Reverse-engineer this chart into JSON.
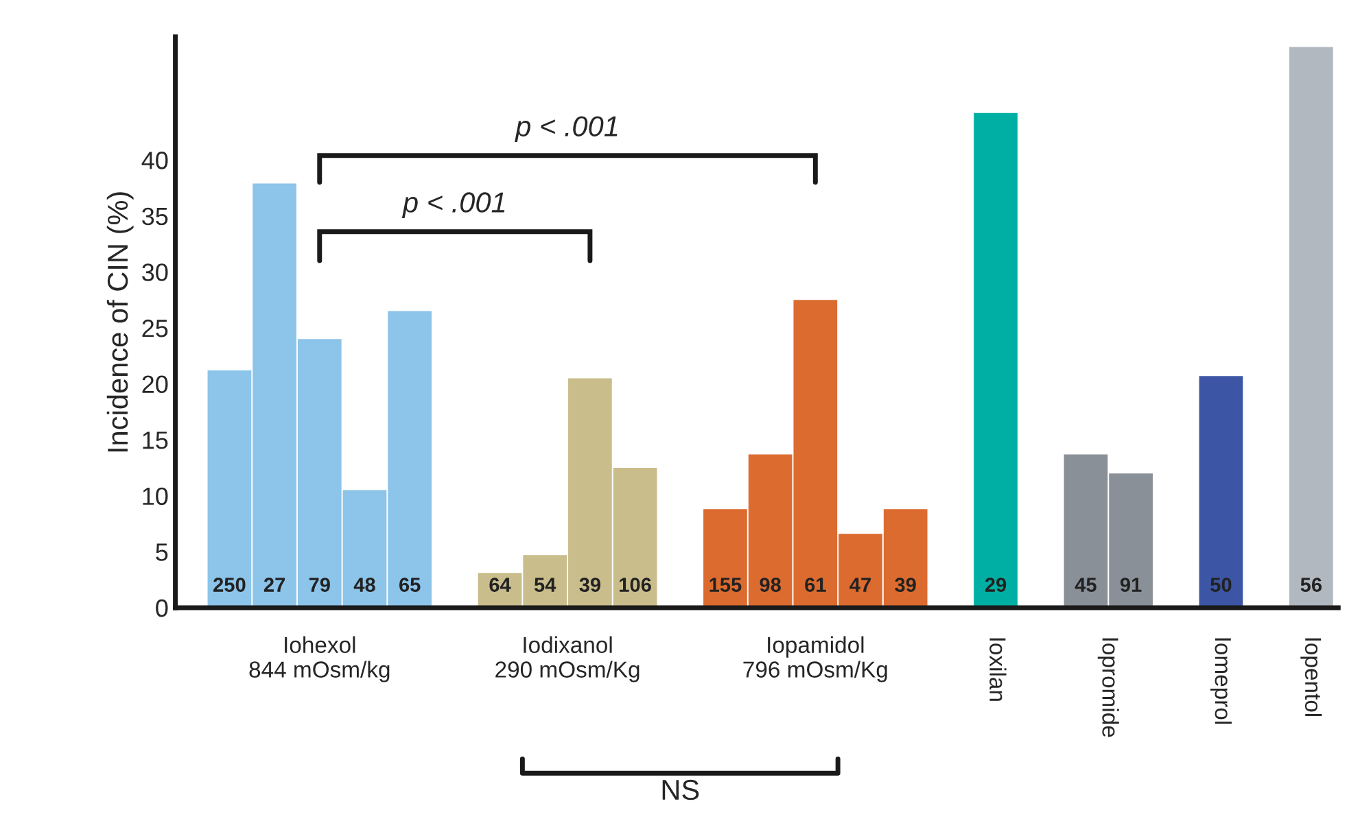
{
  "chart_data": {
    "type": "bar",
    "ylabel": "Incidence of CIN (%)",
    "categories": [
      "250",
      "27",
      "79",
      "48",
      "65",
      null,
      "64",
      "54",
      "39",
      "106",
      null,
      "155",
      "98",
      "61",
      "47",
      "39",
      null,
      "29",
      null,
      "45",
      "91",
      null,
      "50",
      null,
      "56"
    ],
    "series": [
      {
        "name": "Iohexol\n844 mOsm/kg",
        "color": "#8cc4ea",
        "values": [
          21.2,
          37.9,
          24.0,
          10.5,
          26.5,
          null,
          null,
          null,
          null,
          null,
          null,
          null,
          null,
          null,
          null,
          null,
          null,
          null,
          null,
          null,
          null,
          null,
          null,
          null,
          null
        ]
      },
      {
        "name": "Iodixanol\n290 mOsm/Kg",
        "color": "#c9bd8c",
        "values": [
          null,
          null,
          null,
          null,
          null,
          null,
          3.1,
          4.7,
          20.5,
          12.5,
          null,
          null,
          null,
          null,
          null,
          null,
          null,
          null,
          null,
          null,
          null,
          null,
          null,
          null,
          null
        ]
      },
      {
        "name": "Iopamidol\n796 mOsm/Kg",
        "color": "#dc6b2f",
        "values": [
          null,
          null,
          null,
          null,
          null,
          null,
          null,
          null,
          null,
          null,
          null,
          8.8,
          13.7,
          27.5,
          6.6,
          8.8,
          null,
          null,
          null,
          null,
          null,
          null,
          null,
          null,
          null
        ]
      },
      {
        "name": "Ioxilan",
        "color": "#00afa3",
        "values": [
          null,
          null,
          null,
          null,
          null,
          null,
          null,
          null,
          null,
          null,
          null,
          null,
          null,
          null,
          null,
          null,
          null,
          44.2,
          null,
          null,
          null,
          null,
          null,
          null,
          null
        ]
      },
      {
        "name": "Iopromide",
        "color": "#8a9097",
        "values": [
          null,
          null,
          null,
          null,
          null,
          null,
          null,
          null,
          null,
          null,
          null,
          null,
          null,
          null,
          null,
          null,
          null,
          null,
          null,
          13.7,
          12.0,
          null,
          null,
          null,
          null
        ]
      },
      {
        "name": "Iomeprol",
        "color": "#3c56a5",
        "values": [
          null,
          null,
          null,
          null,
          null,
          null,
          null,
          null,
          null,
          null,
          null,
          null,
          null,
          null,
          null,
          null,
          null,
          null,
          null,
          null,
          null,
          null,
          20.7,
          null,
          null
        ]
      },
      {
        "name": "Iopentol",
        "color": "#b2b8c0",
        "values": [
          null,
          null,
          null,
          null,
          null,
          null,
          null,
          null,
          null,
          null,
          null,
          null,
          null,
          null,
          null,
          null,
          null,
          null,
          null,
          null,
          null,
          null,
          null,
          null,
          50.1
        ]
      }
    ],
    "ylim": [
      0,
      51
    ],
    "yticks": [
      0,
      5,
      10,
      15,
      20,
      25,
      30,
      35,
      40
    ],
    "grid": false,
    "legend": false,
    "annotations": [
      "p < .001",
      "p < .001",
      "NS"
    ]
  }
}
